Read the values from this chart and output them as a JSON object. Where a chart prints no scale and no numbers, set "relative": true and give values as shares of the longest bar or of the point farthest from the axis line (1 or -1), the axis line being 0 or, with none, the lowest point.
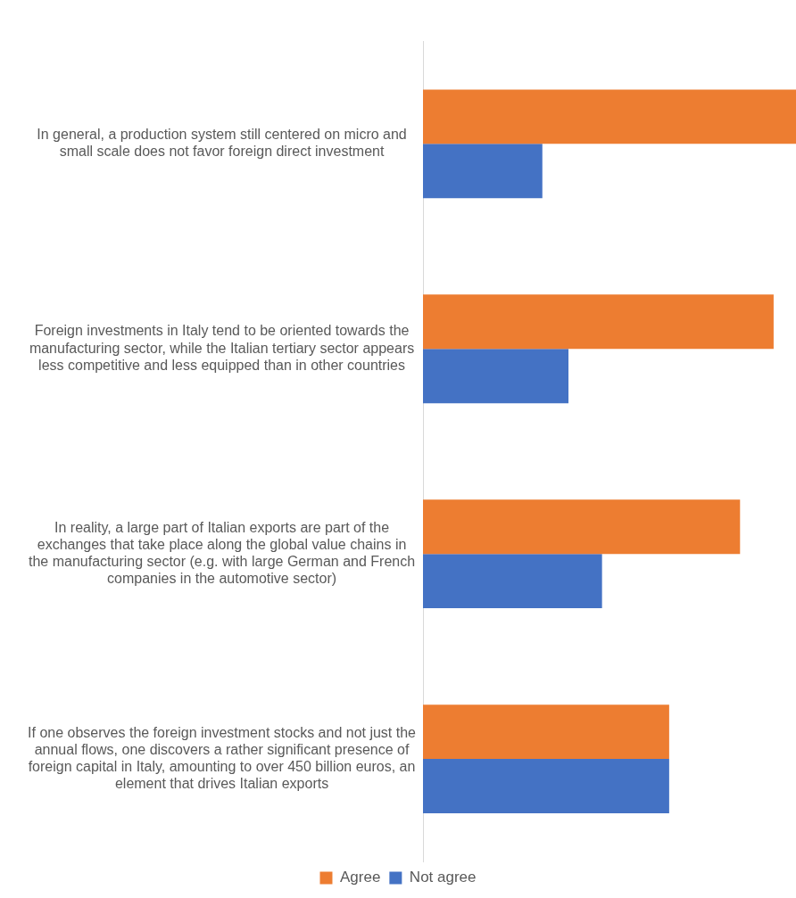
{
  "chart_data": {
    "type": "bar",
    "orientation": "horizontal",
    "relative": true,
    "legend": "bottom",
    "categories": [
      "In general, a production system still centered on micro and small scale does not favor foreign direct investment",
      "Foreign investments in Italy tend to be oriented towards the manufacturing sector, while the Italian tertiary sector appears less competitive and less equipped than in other countries",
      "In reality, a large part of Italian exports are part of the exchanges that take place along the global value chains in the manufacturing sector (e.g. with large German and French companies in the automotive sector)",
      "If one observes the foreign investment stocks and not just the annual flows, one discovers a rather significant presence of foreign capital in Italy, amounting to over 450 billion euros, an element that drives Italian exports"
    ],
    "series": [
      {
        "name": "Agree",
        "color": "#ed7d31",
        "values": [
          1,
          0.94,
          0.85,
          0.66
        ]
      },
      {
        "name": "Not agree",
        "color": "#4472c4",
        "values": [
          0.32,
          0.39,
          0.48,
          0.66
        ]
      }
    ]
  }
}
